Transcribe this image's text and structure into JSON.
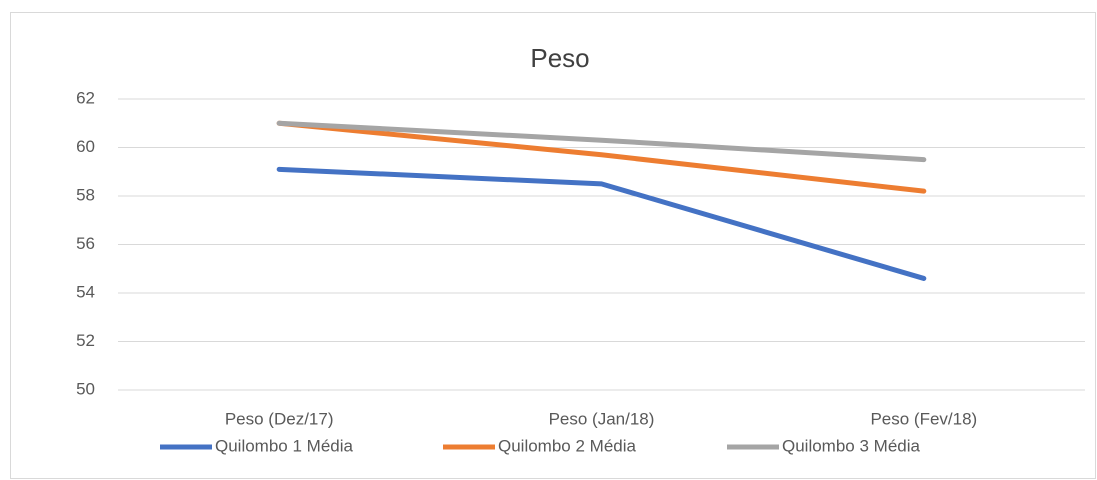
{
  "chart_data": {
    "type": "line",
    "title": "Peso",
    "categories": [
      "Peso (Dez/17)",
      "Peso (Jan/18)",
      "Peso (Fev/18)"
    ],
    "series": [
      {
        "name": "Quilombo 1 Média",
        "color": "#4472c4",
        "values": [
          59.1,
          58.5,
          54.6
        ]
      },
      {
        "name": "Quilombo 2 Média",
        "color": "#ed7d31",
        "values": [
          61.0,
          59.7,
          58.2
        ]
      },
      {
        "name": "Quilombo 3 Média",
        "color": "#a5a5a5",
        "values": [
          61.0,
          60.3,
          59.5
        ]
      }
    ],
    "ylim": [
      50,
      62
    ],
    "yticks": [
      50,
      52,
      54,
      56,
      58,
      60,
      62
    ],
    "grid": true,
    "legend": "bottom"
  }
}
